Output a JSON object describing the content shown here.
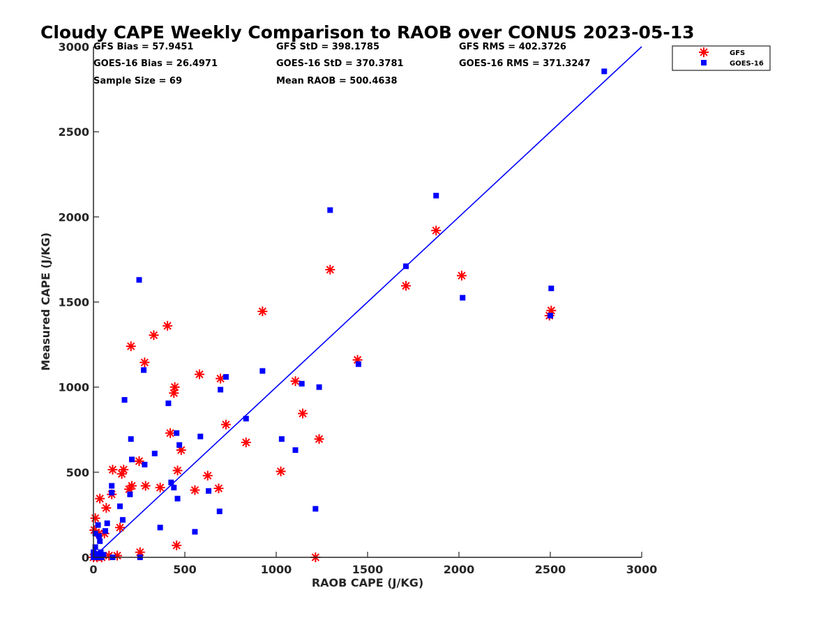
{
  "colors": {
    "gfs": "#ff0000",
    "goes": "#0000ff",
    "fit_line": "#0000ff",
    "axis": "#262626"
  },
  "chart_data": {
    "type": "scatter",
    "title": "Cloudy CAPE Weekly Comparison to RAOB over CONUS 2023-05-13",
    "xlabel": "RAOB CAPE (J/KG)",
    "ylabel": "Measured CAPE (J/KG)",
    "xlim": [
      0,
      3000
    ],
    "ylim": [
      0,
      3000
    ],
    "xticks": [
      "0",
      "500",
      "1000",
      "1500",
      "2000",
      "2500",
      "3000"
    ],
    "yticks": [
      "0",
      "500",
      "1000",
      "1500",
      "2000",
      "2500",
      "3000"
    ],
    "grid": false,
    "legend_position": "outside-top-right",
    "stats": [
      "GFS Bias = 57.9451",
      "GFS StD = 398.1785",
      "GFS RMS = 402.3726",
      "GOES-16 Bias = 26.4971",
      "GOES-16 StD = 370.3781",
      "GOES-16 RMS = 371.3247",
      "Sample Size = 69",
      "Mean RAOB = 500.4638"
    ],
    "line": {
      "x": [
        0,
        3000
      ],
      "y": [
        0,
        3000
      ]
    },
    "series": [
      {
        "name": "GFS",
        "marker": "asterisk",
        "x": [
          0,
          5,
          10,
          15,
          20,
          30,
          35,
          45,
          60,
          70,
          85,
          100,
          105,
          130,
          145,
          155,
          165,
          195,
          205,
          210,
          250,
          255,
          280,
          285,
          330,
          365,
          405,
          420,
          440,
          445,
          455,
          460,
          480,
          555,
          580,
          625,
          685,
          695,
          725,
          835,
          925,
          1025,
          1105,
          1145,
          1215,
          1235,
          1295,
          1445,
          1710,
          1875,
          2015,
          2495,
          2505
        ],
        "y": [
          0,
          160,
          230,
          10,
          0,
          140,
          345,
          0,
          140,
          290,
          10,
          370,
          515,
          10,
          175,
          490,
          515,
          400,
          1240,
          420,
          565,
          30,
          1145,
          420,
          1305,
          410,
          1360,
          730,
          965,
          1000,
          70,
          510,
          630,
          395,
          1075,
          480,
          405,
          1050,
          780,
          675,
          1445,
          505,
          1035,
          845,
          0,
          695,
          1690,
          1160,
          1595,
          1920,
          1655,
          1420,
          1450
        ]
      },
      {
        "name": "GOES-16",
        "marker": "square",
        "x": [
          0,
          0,
          5,
          10,
          10,
          15,
          20,
          25,
          30,
          35,
          35,
          40,
          45,
          55,
          65,
          75,
          100,
          100,
          105,
          145,
          160,
          170,
          200,
          205,
          210,
          250,
          255,
          275,
          280,
          335,
          365,
          410,
          425,
          440,
          455,
          460,
          470,
          555,
          585,
          630,
          690,
          695,
          725,
          835,
          925,
          1030,
          1105,
          1140,
          1215,
          1235,
          1295,
          1450,
          1710,
          1875,
          2020,
          2500,
          2505,
          2795
        ],
        "y": [
          30,
          0,
          10,
          140,
          60,
          0,
          20,
          190,
          125,
          95,
          0,
          30,
          0,
          15,
          155,
          200,
          420,
          380,
          0,
          300,
          220,
          925,
          370,
          695,
          575,
          1630,
          0,
          1100,
          545,
          610,
          175,
          905,
          440,
          410,
          730,
          345,
          660,
          150,
          710,
          390,
          270,
          985,
          1060,
          815,
          1095,
          695,
          630,
          1020,
          285,
          1000,
          2040,
          1135,
          1710,
          2125,
          1525,
          1420,
          1580,
          2855
        ]
      }
    ]
  }
}
